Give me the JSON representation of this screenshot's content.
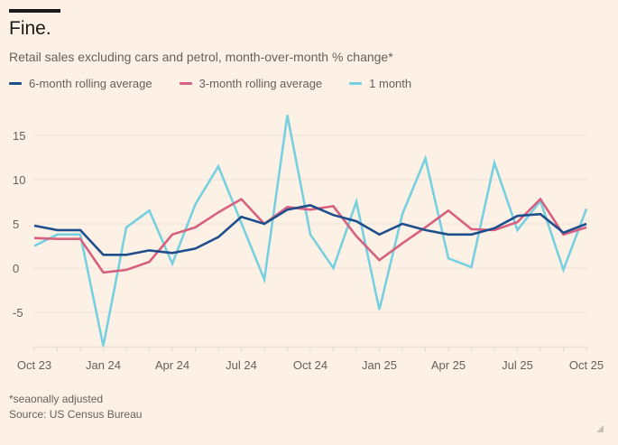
{
  "header": {
    "title": "Fine.",
    "subtitle": "Retail sales excluding cars and petrol, month-over-month % change*"
  },
  "footer": {
    "note": "*seaonally adjusted",
    "source": "Source: US Census Bureau"
  },
  "chart_data": {
    "type": "line",
    "title": "Fine.",
    "subtitle": "Retail sales excluding cars and petrol, month-over-month % change*",
    "xlabel": "",
    "ylabel": "",
    "ylim": [
      -9,
      18
    ],
    "yticks": [
      15,
      10,
      5,
      0,
      -5
    ],
    "ytick_labels": [
      "15",
      "10",
      "5",
      "0",
      "-5"
    ],
    "grid": true,
    "legend_position": "top-left",
    "x": [
      "Oct 23",
      "Nov 23",
      "Dec 23",
      "Jan 24",
      "Feb 24",
      "Mar 24",
      "Apr 24",
      "May 24",
      "Jun 24",
      "Jul 24",
      "Aug 24",
      "Sep 24",
      "Oct 24",
      "Nov 24",
      "Dec 24",
      "Jan 25",
      "Feb 25",
      "Mar 25",
      "Apr 25",
      "May 25",
      "Jun 25",
      "Jul 25",
      "Aug 25",
      "Sep 25",
      "Oct 25"
    ],
    "xtick_labels": [
      {
        "index": 0,
        "label": "Oct 23"
      },
      {
        "index": 3,
        "label": "Jan 24"
      },
      {
        "index": 6,
        "label": "Apr 24"
      },
      {
        "index": 9,
        "label": "Jul 24"
      },
      {
        "index": 12,
        "label": "Oct 24"
      },
      {
        "index": 15,
        "label": "Jan 25"
      },
      {
        "index": 18,
        "label": "Apr 25"
      },
      {
        "index": 21,
        "label": "Jul 25"
      },
      {
        "index": 24,
        "label": "Oct 25"
      }
    ],
    "series": [
      {
        "name": "1 month",
        "color": "#76d0e0",
        "values": [
          2.5,
          3.8,
          3.8,
          -8.8,
          4.6,
          6.5,
          0.5,
          7.2,
          11.5,
          5.1,
          -1.3,
          17.3,
          3.8,
          0.0,
          7.5,
          -4.7,
          6.1,
          12.4,
          1.1,
          0.1,
          11.9,
          4.3,
          7.6,
          -0.2,
          6.7
        ]
      },
      {
        "name": "3-month rolling average",
        "color": "#d6607f",
        "values": [
          3.4,
          3.3,
          3.3,
          -0.5,
          -0.2,
          0.7,
          3.8,
          4.6,
          6.3,
          7.8,
          5.0,
          6.9,
          6.6,
          7.0,
          3.6,
          0.9,
          2.8,
          4.6,
          6.5,
          4.4,
          4.3,
          5.2,
          7.8,
          3.8,
          4.6
        ]
      },
      {
        "name": "6-month rolling average",
        "color": "#1f4e8c",
        "values": [
          4.8,
          4.3,
          4.3,
          1.5,
          1.5,
          2.0,
          1.7,
          2.2,
          3.5,
          5.8,
          5.0,
          6.6,
          7.1,
          6.0,
          5.3,
          3.8,
          5.0,
          4.3,
          3.8,
          3.8,
          4.5,
          5.9,
          6.1,
          4.0,
          5.0
        ]
      }
    ],
    "legend": [
      {
        "label": "6-month rolling average",
        "color": "#1f4e8c"
      },
      {
        "label": "3-month rolling average",
        "color": "#d6607f"
      },
      {
        "label": "1 month",
        "color": "#76d0e0"
      }
    ]
  }
}
